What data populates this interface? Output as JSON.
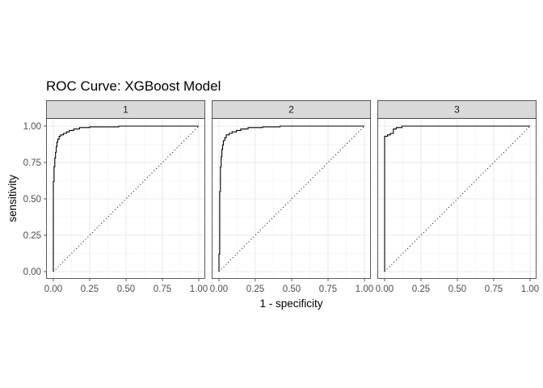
{
  "chart_data": {
    "type": "line",
    "title": "ROC Curve: XGBoost Model",
    "xlabel": "1 - specificity",
    "ylabel": "sensitivity",
    "xlim": [
      0,
      1
    ],
    "ylim": [
      0,
      1
    ],
    "x_ticks": [
      0,
      0.25,
      0.5,
      0.75,
      1
    ],
    "y_ticks": [
      0,
      0.25,
      0.5,
      0.75,
      1
    ],
    "x_tick_labels": [
      "0.00",
      "0.25",
      "0.50",
      "0.75",
      "1.00"
    ],
    "y_tick_labels": [
      "0.00",
      "0.25",
      "0.50",
      "0.75",
      "1.00"
    ],
    "grid": true,
    "reference_line": "diagonal-dotted",
    "panels": [
      {
        "label": "1",
        "curve": [
          [
            0,
            0
          ],
          [
            0,
            0.62
          ],
          [
            0.005,
            0.62
          ],
          [
            0.005,
            0.72
          ],
          [
            0.01,
            0.72
          ],
          [
            0.01,
            0.78
          ],
          [
            0.015,
            0.78
          ],
          [
            0.015,
            0.82
          ],
          [
            0.02,
            0.82
          ],
          [
            0.02,
            0.86
          ],
          [
            0.025,
            0.86
          ],
          [
            0.025,
            0.89
          ],
          [
            0.03,
            0.89
          ],
          [
            0.03,
            0.91
          ],
          [
            0.04,
            0.91
          ],
          [
            0.04,
            0.93
          ],
          [
            0.05,
            0.93
          ],
          [
            0.05,
            0.94
          ],
          [
            0.07,
            0.94
          ],
          [
            0.07,
            0.95
          ],
          [
            0.09,
            0.95
          ],
          [
            0.09,
            0.96
          ],
          [
            0.11,
            0.96
          ],
          [
            0.11,
            0.97
          ],
          [
            0.14,
            0.97
          ],
          [
            0.14,
            0.98
          ],
          [
            0.18,
            0.98
          ],
          [
            0.18,
            0.99
          ],
          [
            0.25,
            0.99
          ],
          [
            0.25,
            0.995
          ],
          [
            0.45,
            0.995
          ],
          [
            0.45,
            1
          ],
          [
            1,
            1
          ]
        ]
      },
      {
        "label": "2",
        "curve": [
          [
            0,
            0
          ],
          [
            0,
            0.12
          ],
          [
            0.005,
            0.12
          ],
          [
            0.005,
            0.55
          ],
          [
            0.01,
            0.55
          ],
          [
            0.01,
            0.72
          ],
          [
            0.015,
            0.72
          ],
          [
            0.015,
            0.79
          ],
          [
            0.02,
            0.79
          ],
          [
            0.02,
            0.84
          ],
          [
            0.025,
            0.84
          ],
          [
            0.025,
            0.87
          ],
          [
            0.03,
            0.87
          ],
          [
            0.03,
            0.9
          ],
          [
            0.04,
            0.9
          ],
          [
            0.04,
            0.92
          ],
          [
            0.05,
            0.92
          ],
          [
            0.05,
            0.94
          ],
          [
            0.07,
            0.94
          ],
          [
            0.07,
            0.95
          ],
          [
            0.09,
            0.95
          ],
          [
            0.09,
            0.96
          ],
          [
            0.12,
            0.96
          ],
          [
            0.12,
            0.97
          ],
          [
            0.15,
            0.97
          ],
          [
            0.15,
            0.98
          ],
          [
            0.2,
            0.98
          ],
          [
            0.2,
            0.99
          ],
          [
            0.3,
            0.99
          ],
          [
            0.3,
            0.995
          ],
          [
            0.42,
            0.995
          ],
          [
            0.42,
            1
          ],
          [
            1,
            1
          ]
        ]
      },
      {
        "label": "3",
        "curve": [
          [
            0,
            0
          ],
          [
            0,
            0.93
          ],
          [
            0.02,
            0.93
          ],
          [
            0.02,
            0.94
          ],
          [
            0.04,
            0.94
          ],
          [
            0.04,
            0.95
          ],
          [
            0.06,
            0.95
          ],
          [
            0.06,
            0.98
          ],
          [
            0.08,
            0.98
          ],
          [
            0.08,
            0.99
          ],
          [
            0.12,
            0.99
          ],
          [
            0.12,
            1
          ],
          [
            1,
            1
          ]
        ]
      }
    ]
  }
}
